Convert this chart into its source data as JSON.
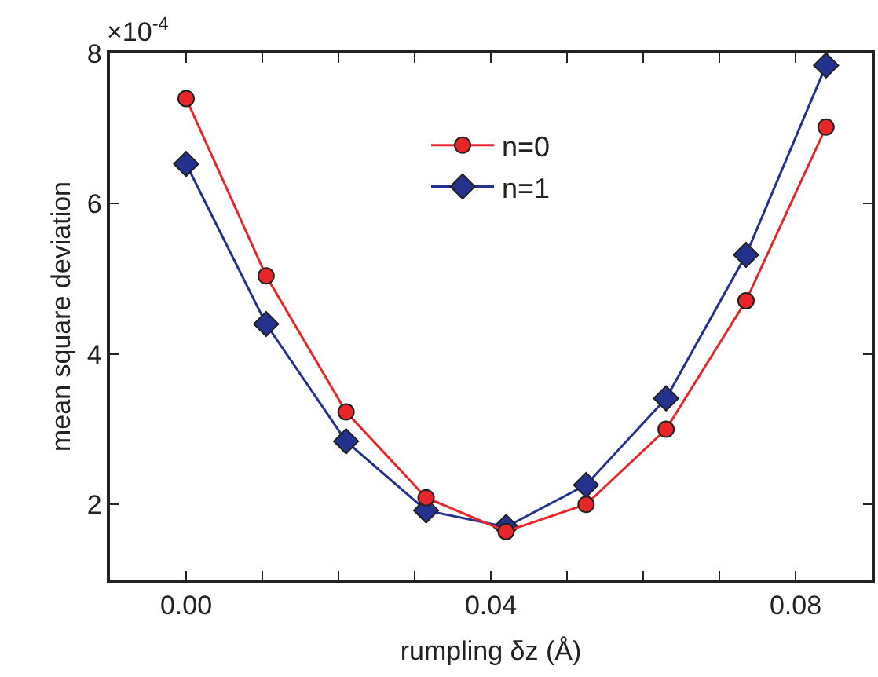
{
  "chart_data": {
    "type": "line",
    "xlabel": "rumpling δz (Å)",
    "ylabel": "mean square deviation",
    "x": [
      0,
      0.0105,
      0.021,
      0.0315,
      0.042,
      0.0525,
      0.063,
      0.0735,
      0.084
    ],
    "series": [
      {
        "name": "n=0",
        "color": "#e8262a",
        "marker": "circle",
        "values": [
          7.4,
          5.04,
          3.23,
          2.09,
          1.64,
          2.0,
          3.0,
          4.71,
          7.02
        ]
      },
      {
        "name": "n=1",
        "color": "#25318f",
        "marker": "diamond",
        "values": [
          6.53,
          4.4,
          2.84,
          1.92,
          1.7,
          2.26,
          3.41,
          5.32,
          7.84
        ]
      }
    ],
    "xlim": [
      -0.01,
      0.09
    ],
    "xticks": [
      "0.00",
      {
        "value": 0.01,
        "label": null
      },
      {
        "value": 0.02,
        "label": null
      },
      {
        "value": 0.03,
        "label": null
      },
      {
        "value": 0.04,
        "label": "0.04"
      },
      {
        "value": 0.05,
        "label": null
      },
      {
        "value": 0.06,
        "label": null
      },
      {
        "value": 0.07,
        "label": null
      },
      {
        "value": 0.08,
        "label": "0.08"
      }
    ],
    "ylim": [
      1,
      8
    ],
    "yticks": [
      2,
      4,
      6,
      8
    ],
    "annotations": [
      "×10$^{-4}$"
    ],
    "grid": false,
    "legend": "top",
    "line_style": "solid"
  }
}
